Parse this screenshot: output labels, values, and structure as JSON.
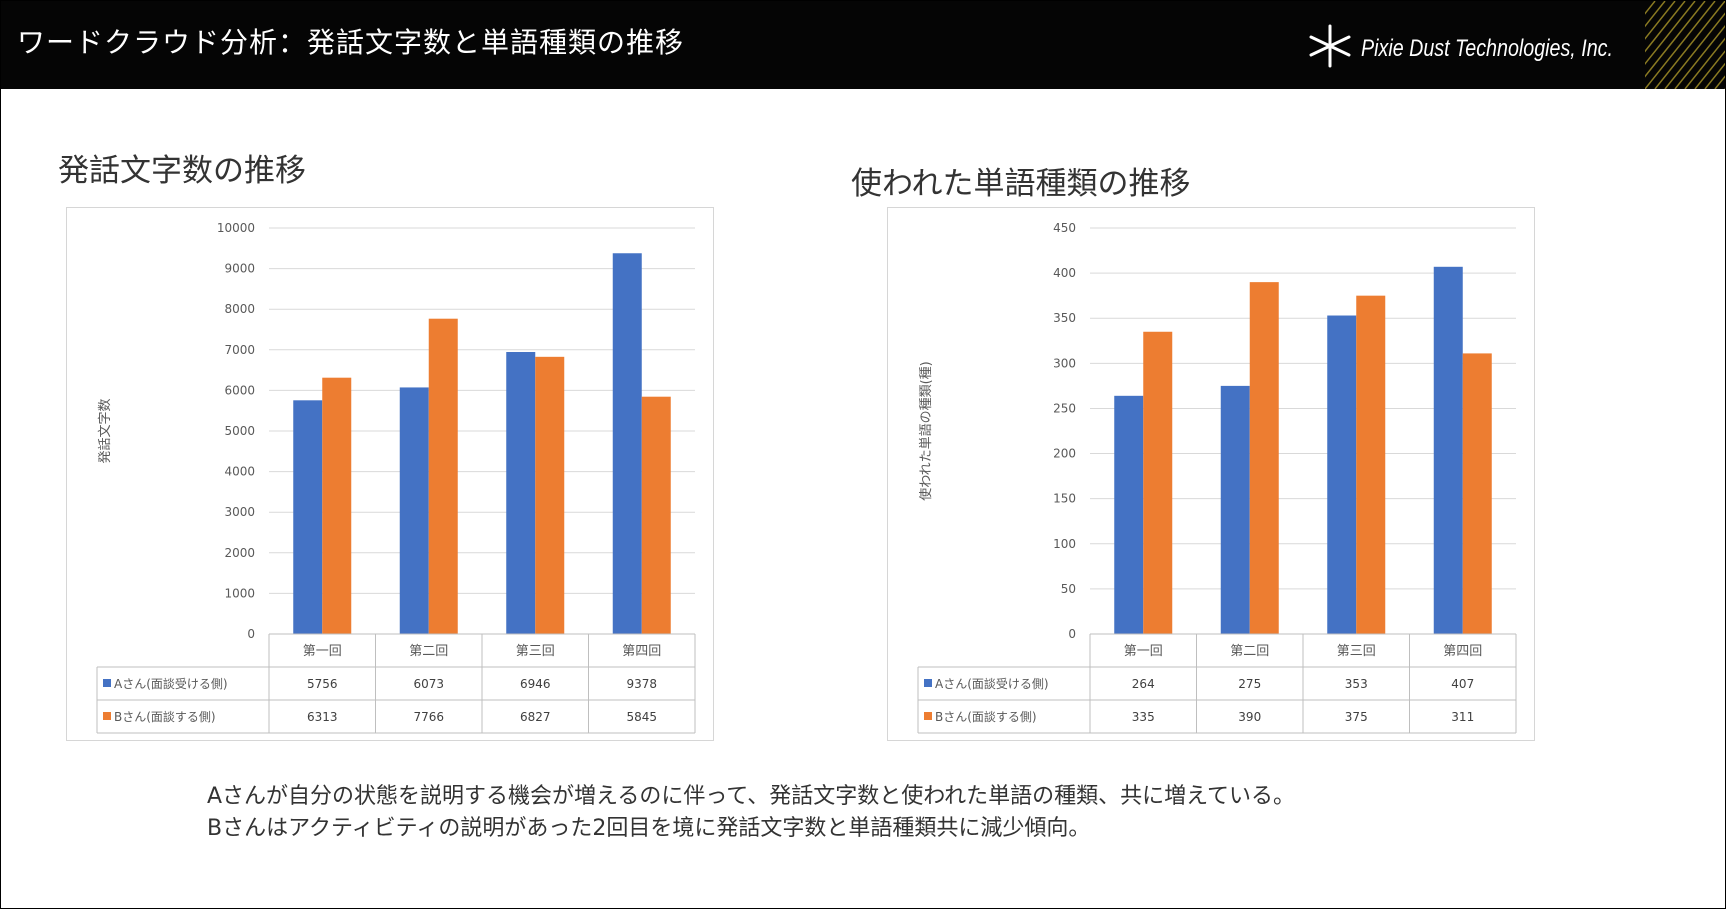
{
  "header": {
    "title": "ワードクラウド分析：発話文字数と単語種類の推移",
    "logo_text": "Pixie Dust Technologies, Inc."
  },
  "colors": {
    "series_a": "#4472c4",
    "series_b": "#ed7d31",
    "grid": "#d9d9d9"
  },
  "chart_data": [
    {
      "type": "bar",
      "title": "発話文字数の推移",
      "ylabel": "発話文字数",
      "xlabel": "",
      "ylim": [
        0,
        10000
      ],
      "yticks": [
        0,
        1000,
        2000,
        3000,
        4000,
        5000,
        6000,
        7000,
        8000,
        9000,
        10000
      ],
      "categories": [
        "第一回",
        "第二回",
        "第三回",
        "第四回"
      ],
      "series": [
        {
          "name": "Aさん(面談受ける側)",
          "values": [
            5756,
            6073,
            6946,
            9378
          ]
        },
        {
          "name": "Bさん(面談する側)",
          "values": [
            6313,
            7766,
            6827,
            5845
          ]
        }
      ]
    },
    {
      "type": "bar",
      "title": "使われた単語種類の推移",
      "ylabel": "使われた単語の種類(種)",
      "xlabel": "",
      "ylim": [
        0,
        450
      ],
      "yticks": [
        0,
        50,
        100,
        150,
        200,
        250,
        300,
        350,
        400,
        450
      ],
      "categories": [
        "第一回",
        "第二回",
        "第三回",
        "第四回"
      ],
      "series": [
        {
          "name": "Aさん(面談受ける側)",
          "values": [
            264,
            275,
            353,
            407
          ]
        },
        {
          "name": "Bさん(面談する側)",
          "values": [
            335,
            390,
            375,
            311
          ]
        }
      ]
    }
  ],
  "note": {
    "line1": "Aさんが自分の状態を説明する機会が増えるのに伴って、発話文字数と使われた単語の種類、共に増えている。",
    "line2": "Bさんはアクティビティの説明があった2回目を境に発話文字数と単語種類共に減少傾向。"
  }
}
